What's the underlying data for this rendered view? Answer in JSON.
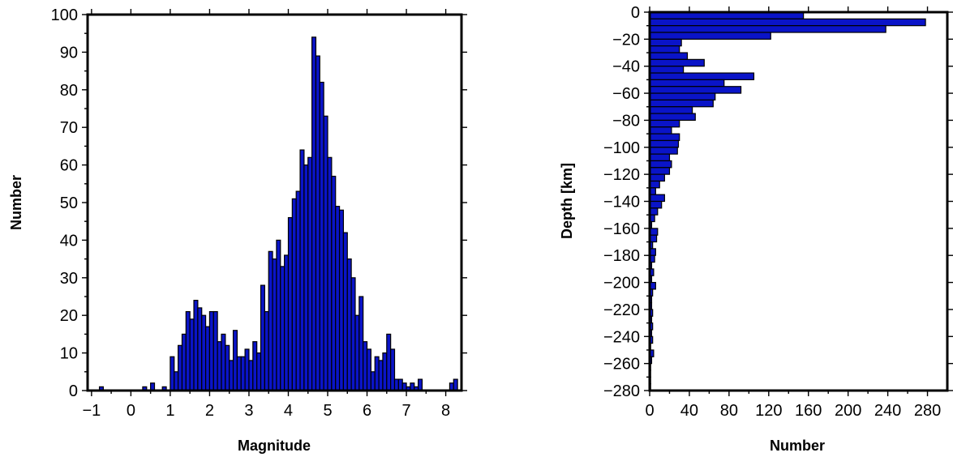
{
  "chart_data": [
    {
      "type": "bar",
      "xlabel": "Magnitude",
      "ylabel": "Number",
      "xlim": [
        -1.1,
        8.4
      ],
      "ylim": [
        0,
        100
      ],
      "xticks": [
        -1,
        0,
        1,
        2,
        3,
        4,
        5,
        6,
        7,
        8
      ],
      "xtick_labels": [
        "−1",
        "0",
        "1",
        "2",
        "3",
        "4",
        "5",
        "6",
        "7",
        "8"
      ],
      "yticks": [
        0,
        10,
        20,
        30,
        40,
        50,
        60,
        70,
        80,
        90,
        100
      ],
      "ytick_labels": [
        "0",
        "10",
        "20",
        "30",
        "40",
        "50",
        "60",
        "70",
        "80",
        "90",
        "100"
      ],
      "bin_width": 0.1,
      "bin_starts": [
        -0.8,
        0.3,
        0.5,
        0.8,
        1.0,
        1.1,
        1.2,
        1.3,
        1.4,
        1.5,
        1.6,
        1.7,
        1.8,
        1.9,
        2.0,
        2.1,
        2.2,
        2.3,
        2.4,
        2.5,
        2.6,
        2.7,
        2.8,
        2.9,
        3.0,
        3.1,
        3.2,
        3.3,
        3.4,
        3.5,
        3.6,
        3.7,
        3.8,
        3.9,
        4.0,
        4.1,
        4.2,
        4.3,
        4.4,
        4.5,
        4.6,
        4.7,
        4.8,
        4.9,
        5.0,
        5.1,
        5.2,
        5.3,
        5.4,
        5.5,
        5.6,
        5.7,
        5.8,
        5.9,
        6.0,
        6.1,
        6.2,
        6.3,
        6.4,
        6.5,
        6.6,
        6.7,
        6.8,
        6.9,
        7.0,
        7.1,
        7.2,
        7.3,
        8.1,
        8.2
      ],
      "values": [
        1,
        1,
        2,
        1,
        9,
        5,
        12,
        15,
        21,
        19,
        24,
        22,
        20,
        17,
        21,
        21,
        13,
        15,
        12,
        8,
        16,
        9,
        9,
        11,
        8,
        13,
        10,
        28,
        21,
        37,
        35,
        40,
        33,
        36,
        46,
        51,
        53,
        64,
        60,
        62,
        94,
        89,
        82,
        73,
        62,
        57,
        49,
        48,
        42,
        35,
        30,
        20,
        25,
        13,
        11,
        5,
        9,
        8,
        10,
        15,
        11,
        3,
        3,
        2,
        1,
        2,
        1,
        3,
        2,
        3
      ]
    },
    {
      "type": "bar",
      "orientation": "horizontal",
      "xlabel": "Number",
      "ylabel": "Depth [km]",
      "xlim": [
        0,
        300
      ],
      "ylim": [
        -280,
        0
      ],
      "xticks": [
        0,
        40,
        80,
        120,
        160,
        200,
        240,
        280
      ],
      "xtick_labels": [
        "0",
        "40",
        "80",
        "120",
        "160",
        "200",
        "240",
        "280"
      ],
      "yticks": [
        0,
        -20,
        -40,
        -60,
        -80,
        -100,
        -120,
        -140,
        -160,
        -180,
        -200,
        -220,
        -240,
        -260,
        -280
      ],
      "ytick_labels": [
        "0",
        "−20",
        "−40",
        "−60",
        "−80",
        "−100",
        "−120",
        "−140",
        "−160",
        "−180",
        "−200",
        "−220",
        "−240",
        "−260",
        "−280"
      ],
      "bin_width": 5,
      "depth_bin_tops": [
        0,
        -5,
        -10,
        -15,
        -20,
        -25,
        -30,
        -35,
        -40,
        -45,
        -50,
        -55,
        -60,
        -65,
        -70,
        -75,
        -80,
        -85,
        -90,
        -95,
        -100,
        -105,
        -110,
        -115,
        -120,
        -125,
        -130,
        -135,
        -140,
        -145,
        -150,
        -155,
        -160,
        -165,
        -170,
        -175,
        -180,
        -185,
        -190,
        -195,
        -200,
        -205,
        -210,
        -215,
        -220,
        -225,
        -230,
        -235,
        -240,
        -245,
        -250,
        -255,
        -260,
        -265,
        -270,
        -275
      ],
      "values": [
        155,
        278,
        238,
        122,
        32,
        30,
        38,
        55,
        34,
        105,
        75,
        92,
        66,
        64,
        43,
        46,
        30,
        22,
        30,
        29,
        28,
        20,
        22,
        20,
        15,
        10,
        6,
        15,
        12,
        8,
        5,
        2,
        8,
        7,
        3,
        6,
        5,
        2,
        4,
        2,
        6,
        3,
        2,
        2,
        3,
        2,
        3,
        2,
        3,
        1,
        4,
        2,
        1,
        1,
        1,
        1
      ]
    }
  ]
}
